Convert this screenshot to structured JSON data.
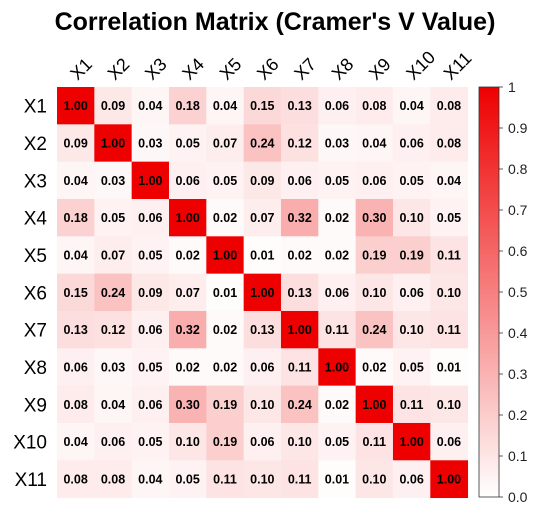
{
  "chart_data": {
    "type": "heatmap",
    "title": "Correlation Matrix (Cramer's V Value)",
    "variables": [
      "X1",
      "X2",
      "X3",
      "X4",
      "X5",
      "X6",
      "X7",
      "X8",
      "X9",
      "X10",
      "X11"
    ],
    "matrix": [
      [
        1.0,
        0.09,
        0.04,
        0.18,
        0.04,
        0.15,
        0.13,
        0.06,
        0.08,
        0.04,
        0.08
      ],
      [
        0.09,
        1.0,
        0.03,
        0.05,
        0.07,
        0.24,
        0.12,
        0.03,
        0.04,
        0.06,
        0.08
      ],
      [
        0.04,
        0.03,
        1.0,
        0.06,
        0.05,
        0.09,
        0.06,
        0.05,
        0.06,
        0.05,
        0.04
      ],
      [
        0.18,
        0.05,
        0.06,
        1.0,
        0.02,
        0.07,
        0.32,
        0.02,
        0.3,
        0.1,
        0.05
      ],
      [
        0.04,
        0.07,
        0.05,
        0.02,
        1.0,
        0.01,
        0.02,
        0.02,
        0.19,
        0.19,
        0.11
      ],
      [
        0.15,
        0.24,
        0.09,
        0.07,
        0.01,
        1.0,
        0.13,
        0.06,
        0.1,
        0.06,
        0.1
      ],
      [
        0.13,
        0.12,
        0.06,
        0.32,
        0.02,
        0.13,
        1.0,
        0.11,
        0.24,
        0.1,
        0.11
      ],
      [
        0.06,
        0.03,
        0.05,
        0.02,
        0.02,
        0.06,
        0.11,
        1.0,
        0.02,
        0.05,
        0.01
      ],
      [
        0.08,
        0.04,
        0.06,
        0.3,
        0.19,
        0.1,
        0.24,
        0.02,
        1.0,
        0.11,
        0.1
      ],
      [
        0.04,
        0.06,
        0.05,
        0.1,
        0.19,
        0.06,
        0.1,
        0.05,
        0.11,
        1.0,
        0.06
      ],
      [
        0.08,
        0.08,
        0.04,
        0.05,
        0.11,
        0.1,
        0.11,
        0.01,
        0.1,
        0.06,
        1.0
      ]
    ],
    "value_range": [
      0,
      1
    ],
    "color_low": "#ffffff",
    "color_high": "#ee0000",
    "colorbar_ticks": [
      "0.0",
      "0.1",
      "0.2",
      "0.3",
      "0.4",
      "0.5",
      "0.6",
      "0.7",
      "0.8",
      "0.9",
      "1"
    ],
    "legend_position": "right",
    "grid": false
  }
}
